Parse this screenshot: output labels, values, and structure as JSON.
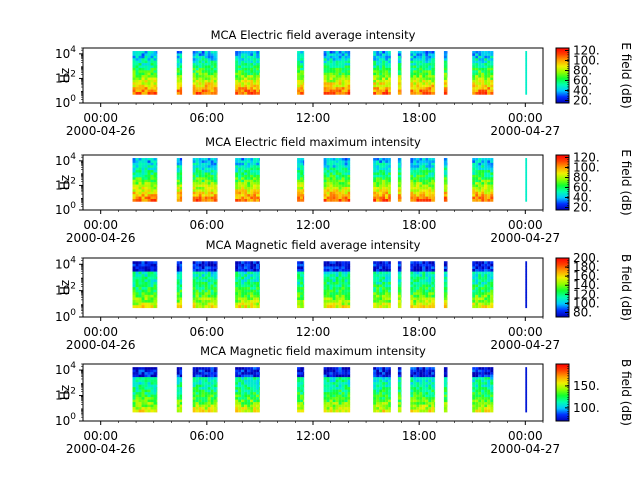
{
  "colorscale": [
    "#0000b4",
    "#0030ff",
    "#00c8ff",
    "#00ffb0",
    "#10ff30",
    "#90ff00",
    "#f0f000",
    "#ffa000",
    "#ff4000",
    "#ff0000"
  ],
  "x_ticks": [
    {
      "top": "00:00",
      "bottom": "2000-04-26"
    },
    {
      "top": "06:00",
      "bottom": ""
    },
    {
      "top": "12:00",
      "bottom": ""
    },
    {
      "top": "18:00",
      "bottom": ""
    },
    {
      "top": "00:00",
      "bottom": "2000-04-27"
    }
  ],
  "y_ticks": [
    {
      "base": "10",
      "exp": "0"
    },
    {
      "base": "10",
      "exp": "2"
    },
    {
      "base": "10",
      "exp": "4"
    }
  ],
  "chart_data": [
    {
      "type": "heatmap",
      "title": "MCA  Electric field average intensity",
      "ylabel": "Hz",
      "colorbar_label": "E field (dB)",
      "colorbar_ticks": [
        "20.",
        "40.",
        "60.",
        "80.",
        "100.",
        "120."
      ],
      "colorbar_range": [
        15,
        125
      ],
      "y_range": [
        1,
        30000
      ],
      "x_range_hours": [
        -1,
        25
      ],
      "data_segments_hours": [
        [
          1.8,
          3.2
        ],
        [
          4.3,
          4.6
        ],
        [
          5.2,
          6.6
        ],
        [
          7.6,
          9.0
        ],
        [
          11.1,
          11.5
        ],
        [
          12.6,
          14.1
        ],
        [
          15.4,
          16.4
        ],
        [
          16.8,
          17.0
        ],
        [
          17.5,
          18.9
        ],
        [
          19.4,
          19.6
        ],
        [
          21.0,
          22.2
        ],
        [
          24.0,
          24.1
        ]
      ]
    },
    {
      "type": "heatmap",
      "title": "MCA  Electric field maximum intensity",
      "ylabel": "Hz",
      "colorbar_label": "E field (dB)",
      "colorbar_ticks": [
        "20.",
        "40.",
        "60.",
        "80.",
        "100.",
        "120."
      ],
      "colorbar_range": [
        15,
        125
      ],
      "y_range": [
        1,
        30000
      ],
      "x_range_hours": [
        -1,
        25
      ],
      "data_segments_hours": [
        [
          1.8,
          3.2
        ],
        [
          4.3,
          4.6
        ],
        [
          5.2,
          6.6
        ],
        [
          7.6,
          9.0
        ],
        [
          11.1,
          11.5
        ],
        [
          12.6,
          14.1
        ],
        [
          15.4,
          16.4
        ],
        [
          16.8,
          17.0
        ],
        [
          17.5,
          18.9
        ],
        [
          19.4,
          19.6
        ],
        [
          21.0,
          22.2
        ],
        [
          24.0,
          24.1
        ]
      ]
    },
    {
      "type": "heatmap",
      "title": "MCA  Magnetic field average intensity",
      "ylabel": "Hz",
      "colorbar_label": "B field (dB)",
      "colorbar_ticks": [
        "80.",
        "100.",
        "120.",
        "140.",
        "160.",
        "180.",
        "200."
      ],
      "colorbar_range": [
        70,
        200
      ],
      "y_range": [
        1,
        30000
      ],
      "x_range_hours": [
        -1,
        25
      ],
      "data_segments_hours": [
        [
          1.8,
          3.2
        ],
        [
          4.3,
          4.6
        ],
        [
          5.2,
          6.6
        ],
        [
          7.6,
          9.0
        ],
        [
          11.1,
          11.5
        ],
        [
          12.6,
          14.1
        ],
        [
          15.4,
          16.4
        ],
        [
          16.8,
          17.0
        ],
        [
          17.5,
          18.9
        ],
        [
          19.4,
          19.6
        ],
        [
          21.0,
          22.2
        ],
        [
          24.0,
          24.1
        ]
      ]
    },
    {
      "type": "heatmap",
      "title": "MCA  Magnetic field maximum intensity",
      "ylabel": "Hz",
      "colorbar_label": "B field (dB)",
      "colorbar_ticks": [
        "100.",
        "150."
      ],
      "colorbar_range": [
        70,
        200
      ],
      "y_range": [
        1,
        30000
      ],
      "x_range_hours": [
        -1,
        25
      ],
      "data_segments_hours": [
        [
          1.8,
          3.2
        ],
        [
          4.3,
          4.6
        ],
        [
          5.2,
          6.6
        ],
        [
          7.6,
          9.0
        ],
        [
          11.1,
          11.5
        ],
        [
          12.6,
          14.1
        ],
        [
          15.4,
          16.4
        ],
        [
          16.8,
          17.0
        ],
        [
          17.5,
          18.9
        ],
        [
          19.4,
          19.6
        ],
        [
          21.0,
          22.2
        ],
        [
          24.0,
          24.1
        ]
      ]
    }
  ]
}
